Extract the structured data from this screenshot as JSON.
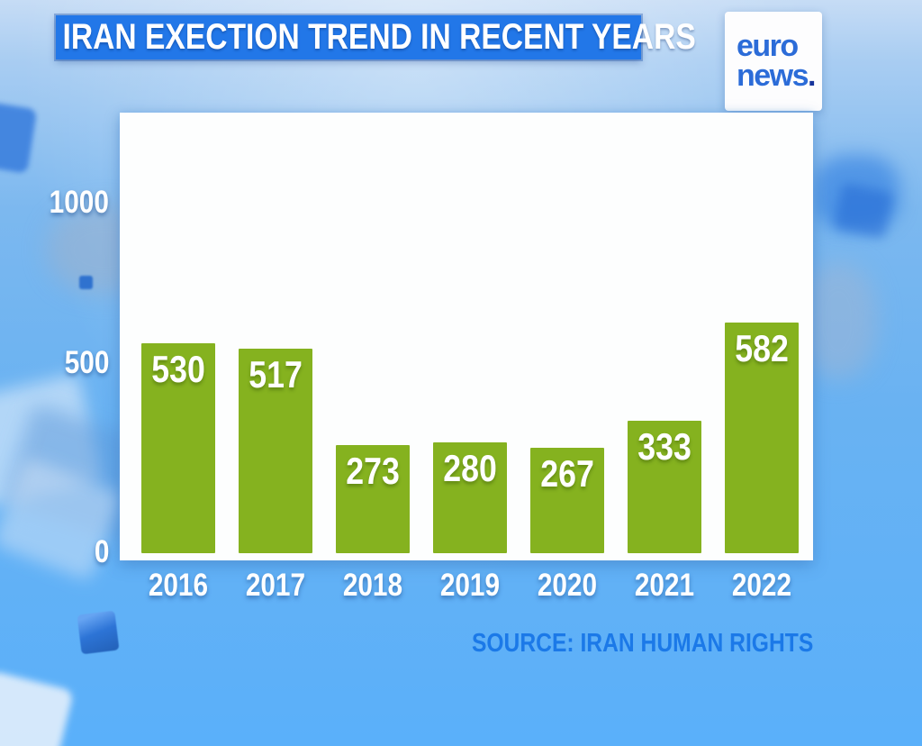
{
  "header": {
    "title": "IRAN EXECTION TREND IN RECENT YEARS",
    "logo": {
      "line1": "euro",
      "line2": "news",
      "dot": "."
    }
  },
  "chart_data": {
    "type": "bar",
    "title": "IRAN EXECTION TREND IN RECENT YEARS",
    "categories": [
      "2016",
      "2017",
      "2018",
      "2019",
      "2020",
      "2021",
      "2022"
    ],
    "values": [
      530,
      517,
      273,
      280,
      267,
      333,
      582
    ],
    "y_ticks": [
      1000,
      500,
      0
    ],
    "ylim": [
      0,
      1130
    ],
    "xlabel": "",
    "ylabel": "",
    "grid": "off",
    "legend": "none",
    "value_labels": "inside-top",
    "bar_color": "#85b21f",
    "value_label_color": "#ffffff",
    "source": "SOURCE: IRAN HUMAN RIGHTS"
  },
  "colors": {
    "banner_blue": "#2277e8",
    "bar_green": "#85b21f",
    "source_blue": "#1b79e8",
    "logo_blue": "#2c6cd8",
    "logo_dot_blue": "#16339b",
    "background_top": "#c6dcf5",
    "background_bottom": "#5ab0fa",
    "plot_background": "#fdfefe"
  }
}
